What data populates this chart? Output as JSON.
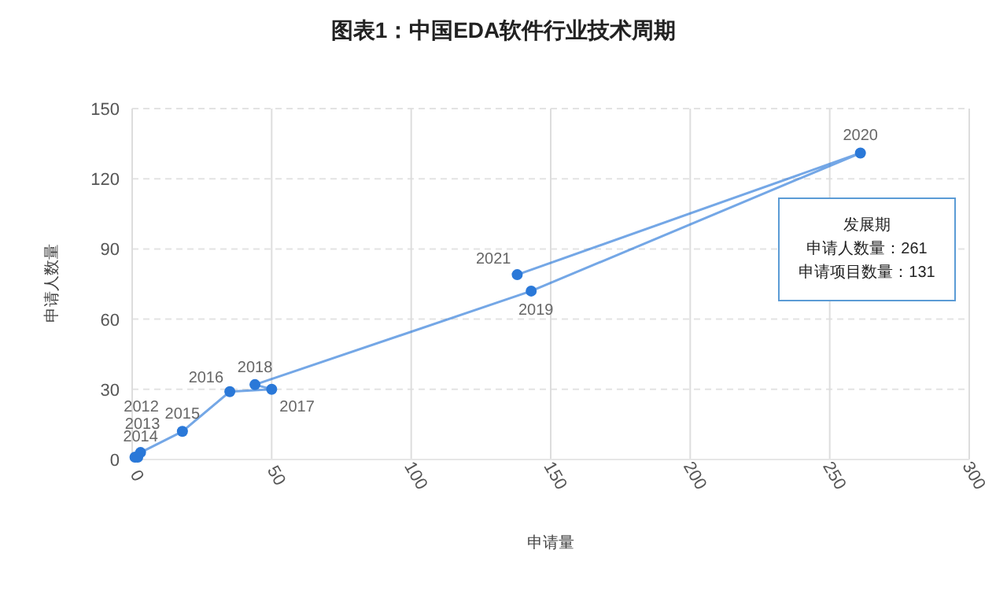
{
  "chart_data": {
    "type": "line",
    "title": "图表1：中国EDA软件行业技术周期",
    "xlabel": "申请量",
    "ylabel": "申请人数量",
    "xlim": [
      0,
      300
    ],
    "xticks": [
      0,
      50,
      100,
      150,
      200,
      250,
      300
    ],
    "ylim": [
      0,
      150
    ],
    "yticks": [
      0,
      30,
      60,
      90,
      120,
      150
    ],
    "grid": true,
    "marker": "circle",
    "line_style": "solid",
    "series": [
      {
        "color": "#2a78d8",
        "x": [
          1,
          2,
          3,
          18,
          35,
          50,
          44,
          143,
          261,
          138
        ],
        "values": [
          1,
          1,
          3,
          12,
          29,
          30,
          32,
          72,
          131,
          79
        ]
      }
    ],
    "annotations": [
      {
        "text": "2012",
        "x": 1,
        "y": 1
      },
      {
        "text": "2013",
        "x": 2,
        "y": 1
      },
      {
        "text": "2014",
        "x": 3,
        "y": 3
      },
      {
        "text": "2015",
        "x": 18,
        "y": 12
      },
      {
        "text": "2016",
        "x": 35,
        "y": 29
      },
      {
        "text": "2017",
        "x": 50,
        "y": 30
      },
      {
        "text": "2018",
        "x": 44,
        "y": 32
      },
      {
        "text": "2019",
        "x": 143,
        "y": 72
      },
      {
        "text": "2020",
        "x": 261,
        "y": 131
      },
      {
        "text": "2021",
        "x": 138,
        "y": 79
      },
      "发展期",
      "申请人数量：261",
      "申请项目数量：131"
    ]
  }
}
